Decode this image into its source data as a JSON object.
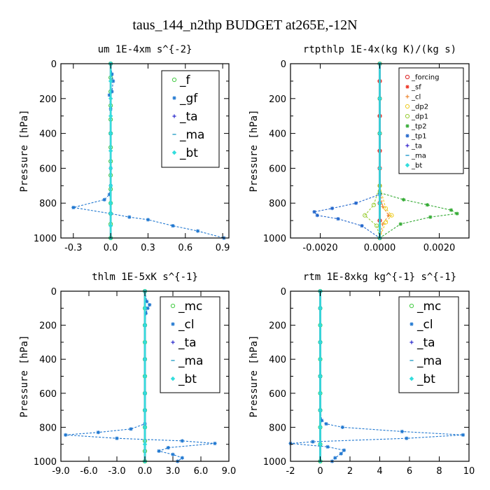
{
  "figure_title": "taus_144_n2thp  BUDGET at265E,-12N",
  "chart_data": [
    {
      "type": "line",
      "title": "um  1E-4xm s^{-2}",
      "ylabel": "Pressure [hPa]",
      "xlim": [
        -0.4,
        0.95
      ],
      "ylim": [
        0,
        1000
      ],
      "y_inverted": true,
      "xticks": [
        -0.3,
        0.0,
        0.3,
        0.6,
        0.9
      ],
      "xtick_labels": [
        "-0.3",
        "0.0",
        "0.3",
        "0.6",
        "0.9"
      ],
      "yticks": [
        0,
        200,
        400,
        600,
        800,
        1000
      ],
      "legend_position": "top-right",
      "series": [
        {
          "name": "_f",
          "color": "#44cc44",
          "marker": "circle",
          "x": [
            0,
            0,
            0,
            0,
            0,
            0,
            0,
            0,
            0,
            0,
            0,
            0,
            0,
            0
          ],
          "y": [
            0,
            80,
            160,
            240,
            320,
            400,
            480,
            560,
            640,
            720,
            800,
            860,
            920,
            1000
          ]
        },
        {
          "name": "_gf",
          "color": "#1f77d0",
          "marker": "star",
          "x": [
            0.0,
            0.01,
            0.02,
            0.01,
            -0.01,
            0.0,
            0.0,
            0.0,
            0.0,
            -0.01,
            -0.05,
            -0.3,
            0.0,
            0.15,
            0.3,
            0.5,
            0.7,
            0.91
          ],
          "y": [
            0,
            60,
            100,
            160,
            180,
            260,
            400,
            600,
            700,
            750,
            780,
            825,
            860,
            880,
            895,
            930,
            960,
            1000
          ]
        },
        {
          "name": "_ta",
          "color": "#2a2acc",
          "marker": "plus",
          "x": [
            0,
            0,
            0,
            0,
            0,
            0,
            0,
            0,
            0,
            0,
            0,
            0
          ],
          "y": [
            0,
            100,
            200,
            300,
            400,
            500,
            600,
            700,
            800,
            860,
            930,
            1000
          ]
        },
        {
          "name": "_ma",
          "color": "#2aa0c8",
          "marker": "dash",
          "x": [
            0,
            0,
            0,
            0,
            0,
            0,
            0,
            0,
            0,
            0,
            0,
            0
          ],
          "y": [
            0,
            100,
            200,
            300,
            400,
            500,
            600,
            700,
            800,
            860,
            930,
            1000
          ]
        },
        {
          "name": "_bt",
          "color": "#33dddd",
          "marker": "diamond",
          "x": [
            0,
            0,
            0,
            0,
            0,
            0,
            0,
            0,
            0,
            0,
            0,
            0
          ],
          "y": [
            0,
            100,
            200,
            300,
            400,
            500,
            600,
            700,
            800,
            860,
            930,
            1000
          ]
        }
      ]
    },
    {
      "type": "line",
      "title": "rtpthlp  1E-4x(kg K)/(kg s)",
      "ylabel": "Pressure [hPa]",
      "xlim": [
        -0.003,
        0.003
      ],
      "ylim": [
        0,
        1000
      ],
      "y_inverted": true,
      "xticks": [
        -0.002,
        0.0,
        0.002
      ],
      "xtick_labels": [
        "-0.0020",
        "0.0000",
        "0.0020"
      ],
      "yticks": [
        0,
        200,
        400,
        600,
        800,
        1000
      ],
      "legend_position": "top-right",
      "series": [
        {
          "name": "_forcing",
          "color": "#dd2222",
          "marker": "circle",
          "x": [
            0,
            0,
            0,
            0,
            0,
            0,
            0,
            0,
            0,
            0,
            0
          ],
          "y": [
            0,
            100,
            200,
            300,
            400,
            500,
            600,
            700,
            800,
            900,
            1000
          ]
        },
        {
          "name": "_sf",
          "color": "#ee3322",
          "marker": "star",
          "x": [
            0,
            0,
            0,
            0,
            0,
            0,
            0,
            0,
            0,
            0,
            0
          ],
          "y": [
            0,
            100,
            200,
            300,
            400,
            500,
            600,
            700,
            800,
            900,
            1000
          ]
        },
        {
          "name": "_cl",
          "color": "#ee8833",
          "marker": "plus",
          "x": [
            0,
            0,
            0,
            0,
            0.0001,
            0.0003,
            0.0001,
            0
          ],
          "y": [
            0,
            200,
            400,
            700,
            820,
            870,
            920,
            1000
          ]
        },
        {
          "name": "_dp2",
          "color": "#eecc22",
          "marker": "circle",
          "x": [
            0,
            0,
            0,
            0,
            0.0002,
            0.0004,
            0.0002,
            0
          ],
          "y": [
            0,
            200,
            400,
            700,
            830,
            870,
            910,
            1000
          ]
        },
        {
          "name": "_dp1",
          "color": "#99cc33",
          "marker": "circle",
          "x": [
            0,
            0,
            0,
            0,
            -0.0002,
            -0.0005,
            -0.0001,
            0
          ],
          "y": [
            0,
            200,
            400,
            700,
            810,
            870,
            930,
            1000
          ]
        },
        {
          "name": "_tp2",
          "color": "#33aa33",
          "marker": "star",
          "x": [
            0,
            0,
            0,
            0,
            0.0008,
            0.0016,
            0.0024,
            0.0026,
            0.0017,
            0.0007,
            0
          ],
          "y": [
            0,
            200,
            400,
            740,
            780,
            810,
            840,
            860,
            880,
            920,
            1000
          ]
        },
        {
          "name": "_tp1",
          "color": "#2266cc",
          "marker": "star",
          "x": [
            0,
            0,
            0,
            0,
            -0.0008,
            -0.0016,
            -0.0022,
            -0.0021,
            -0.0014,
            -0.0006,
            0
          ],
          "y": [
            0,
            200,
            400,
            750,
            800,
            830,
            850,
            870,
            890,
            930,
            1000
          ]
        },
        {
          "name": "_ta",
          "color": "#3322cc",
          "marker": "plus",
          "x": [
            0,
            0,
            0,
            0,
            0,
            0
          ],
          "y": [
            0,
            200,
            400,
            600,
            800,
            1000
          ]
        },
        {
          "name": "_ma",
          "color": "#2299cc",
          "marker": "dash",
          "x": [
            0,
            0,
            0,
            0,
            0,
            0
          ],
          "y": [
            0,
            200,
            400,
            600,
            800,
            1000
          ]
        },
        {
          "name": "_bt",
          "color": "#33dddd",
          "marker": "diamond",
          "x": [
            0,
            0,
            0,
            0,
            0,
            0
          ],
          "y": [
            0,
            200,
            400,
            600,
            800,
            1000
          ]
        }
      ]
    },
    {
      "type": "line",
      "title": "thlm  1E-5xK s^{-1}",
      "ylabel": "Pressure [hPa]",
      "xlim": [
        -9.0,
        9.0
      ],
      "ylim": [
        0,
        1000
      ],
      "y_inverted": true,
      "xticks": [
        -9.0,
        -6.0,
        -3.0,
        0.0,
        3.0,
        6.0,
        9.0
      ],
      "xtick_labels": [
        "-9.0",
        "-6.0",
        "-3.0",
        "0.0",
        "3.0",
        "6.0",
        "9.0"
      ],
      "yticks": [
        0,
        200,
        400,
        600,
        800,
        1000
      ],
      "legend_position": "top-right",
      "series": [
        {
          "name": "_mc",
          "color": "#44cc44",
          "marker": "circle",
          "x": [
            0,
            0,
            0,
            0,
            0,
            0,
            0,
            0,
            0,
            0,
            0,
            0
          ],
          "y": [
            0,
            100,
            200,
            300,
            400,
            500,
            600,
            700,
            800,
            880,
            940,
            1000
          ]
        },
        {
          "name": "_cl",
          "color": "#1f77d0",
          "marker": "star",
          "x": [
            0,
            0.2,
            0.5,
            0.3,
            0.1,
            0.0,
            0.0,
            0.0,
            0.0,
            0.0,
            -1.5,
            -5.0,
            -8.5,
            -3.0,
            4.0,
            7.5,
            2.5,
            1.5,
            3.0,
            4.0,
            3.5
          ],
          "y": [
            0,
            60,
            80,
            100,
            130,
            200,
            400,
            600,
            700,
            780,
            810,
            830,
            845,
            865,
            880,
            895,
            920,
            940,
            960,
            980,
            1000
          ]
        },
        {
          "name": "_ta",
          "color": "#2a2acc",
          "marker": "plus",
          "x": [
            0,
            0,
            0,
            0,
            0,
            0,
            0,
            0,
            0,
            0,
            0
          ],
          "y": [
            0,
            100,
            200,
            300,
            400,
            500,
            600,
            700,
            800,
            900,
            1000
          ]
        },
        {
          "name": "_ma",
          "color": "#2aa0c8",
          "marker": "dash",
          "x": [
            0,
            0,
            0,
            0,
            0,
            0,
            0,
            0,
            0,
            0,
            0
          ],
          "y": [
            0,
            100,
            200,
            300,
            400,
            500,
            600,
            700,
            800,
            900,
            1000
          ]
        },
        {
          "name": "_bt",
          "color": "#33dddd",
          "marker": "diamond",
          "x": [
            0,
            0,
            0,
            0,
            0,
            0,
            0,
            0,
            0,
            0,
            0
          ],
          "y": [
            0,
            100,
            200,
            300,
            400,
            500,
            600,
            700,
            800,
            900,
            1000
          ]
        }
      ]
    },
    {
      "type": "line",
      "title": "rtm  1E-8xkg kg^{-1} s^{-1}",
      "ylabel": "Pressure [hPa]",
      "xlim": [
        -2,
        10
      ],
      "ylim": [
        0,
        1000
      ],
      "y_inverted": true,
      "xticks": [
        -2,
        0,
        2,
        4,
        6,
        8,
        10
      ],
      "xtick_labels": [
        "-2",
        "0",
        "2",
        "4",
        "6",
        "8",
        "10"
      ],
      "yticks": [
        0,
        200,
        400,
        600,
        800,
        1000
      ],
      "legend_position": "top-right",
      "series": [
        {
          "name": "_mc",
          "color": "#44cc44",
          "marker": "circle",
          "x": [
            0,
            0,
            0,
            0,
            0,
            0,
            0,
            0,
            0,
            0,
            0
          ],
          "y": [
            0,
            100,
            200,
            300,
            400,
            500,
            600,
            700,
            800,
            900,
            1000
          ]
        },
        {
          "name": "_cl",
          "color": "#1f77d0",
          "marker": "star",
          "x": [
            0,
            0,
            0,
            0,
            0,
            0.1,
            0.4,
            1.5,
            5.5,
            9.6,
            5.8,
            -0.5,
            -2.0,
            0.5,
            1.6,
            1.4,
            1.0,
            0.8
          ],
          "y": [
            0,
            100,
            300,
            500,
            700,
            760,
            780,
            800,
            825,
            845,
            865,
            885,
            895,
            915,
            935,
            955,
            980,
            1000
          ]
        },
        {
          "name": "_ta",
          "color": "#2a2acc",
          "marker": "plus",
          "x": [
            0,
            0,
            0,
            0,
            0,
            0,
            0,
            0,
            0,
            0,
            0
          ],
          "y": [
            0,
            100,
            200,
            300,
            400,
            500,
            600,
            700,
            800,
            900,
            1000
          ]
        },
        {
          "name": "_ma",
          "color": "#2aa0c8",
          "marker": "dash",
          "x": [
            0,
            0,
            0,
            0,
            0,
            0,
            0,
            0,
            0,
            0,
            0
          ],
          "y": [
            0,
            100,
            200,
            300,
            400,
            500,
            600,
            700,
            800,
            900,
            1000
          ]
        },
        {
          "name": "_bt",
          "color": "#33dddd",
          "marker": "diamond",
          "x": [
            0,
            0,
            0,
            0,
            0,
            0,
            0,
            0,
            0,
            0,
            0
          ],
          "y": [
            0,
            100,
            200,
            300,
            400,
            500,
            600,
            700,
            800,
            900,
            1000
          ]
        }
      ]
    }
  ]
}
